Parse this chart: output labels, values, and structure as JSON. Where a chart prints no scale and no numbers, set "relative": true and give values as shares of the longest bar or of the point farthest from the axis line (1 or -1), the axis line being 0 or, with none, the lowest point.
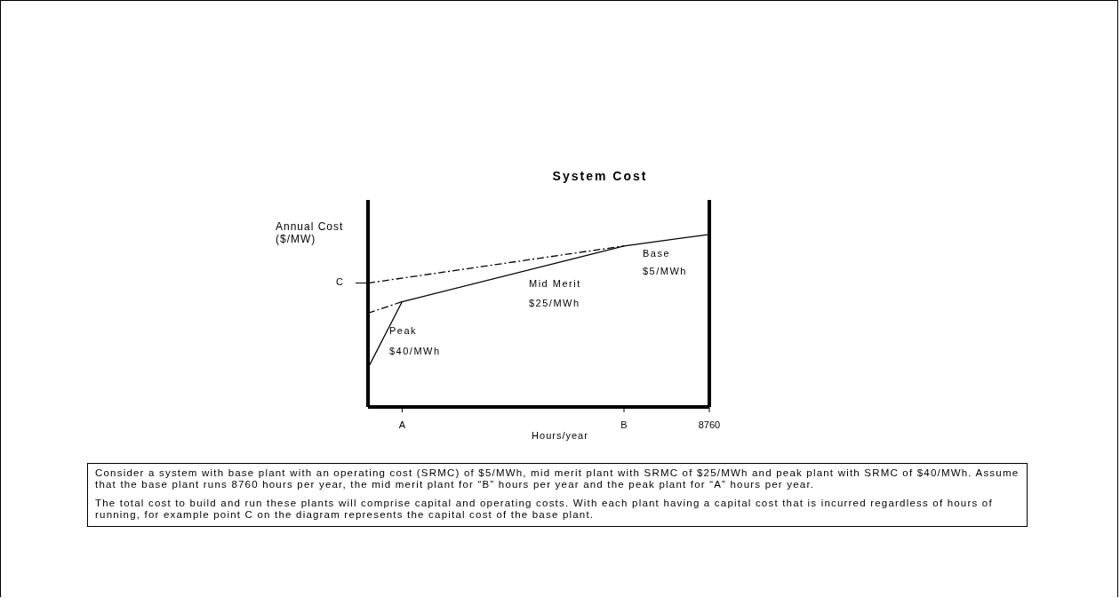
{
  "chart_data": {
    "type": "line",
    "title": "System Cost",
    "xlabel": "Hours/year",
    "ylabel": "Annual Cost ($/MW)",
    "relative": true,
    "categories": [
      null,
      null,
      "A",
      null,
      null,
      null,
      null,
      null,
      null,
      null,
      null,
      null,
      null,
      null,
      null,
      "B",
      null,
      null,
      null,
      null,
      "8760"
    ],
    "series": [
      {
        "color": "#000000",
        "line_style": "solid",
        "values": [
          0.226,
          null,
          0.61,
          null,
          null,
          null,
          null,
          null,
          null,
          null,
          null,
          null,
          null,
          null,
          null,
          0.933,
          null,
          null,
          null,
          null,
          1
        ]
      },
      {
        "color": "#000000",
        "line_style": "dashed",
        "values": [
          0.718,
          null,
          null,
          null,
          null,
          null,
          null,
          null,
          null,
          null,
          null,
          null,
          null,
          null,
          null,
          0.933,
          null,
          null,
          null,
          null,
          null
        ]
      },
      {
        "color": "#000000",
        "line_style": "dashed",
        "values": [
          0.544,
          null,
          0.61,
          null,
          null,
          null,
          null,
          null,
          null,
          null,
          null,
          null,
          null,
          null,
          null,
          null,
          null,
          null,
          null,
          null,
          null
        ]
      }
    ],
    "marker": "none",
    "annotations": [
      "C",
      "Peak",
      "$40/MWh",
      "Mid Merit",
      "$25/MWh",
      "Base",
      "$5/MWh",
      "Consider a system with base plant with an operating cost (SRMC) of $5/MWh, mid merit plant with SRMC of $25/MWh and peak plant with SRMC of $40/MWh.  Assume that the base plant runs 8760 hours per year, the mid merit plant for “B” hours per year and the peak plant for “A” hours per year.",
      "The total cost to build and run these plants will comprise capital and operating costs. With each plant having a capital cost that is incurred regardless of hours of running, for example point C on the diagram represents the capital cost of the base plant."
    ]
  }
}
